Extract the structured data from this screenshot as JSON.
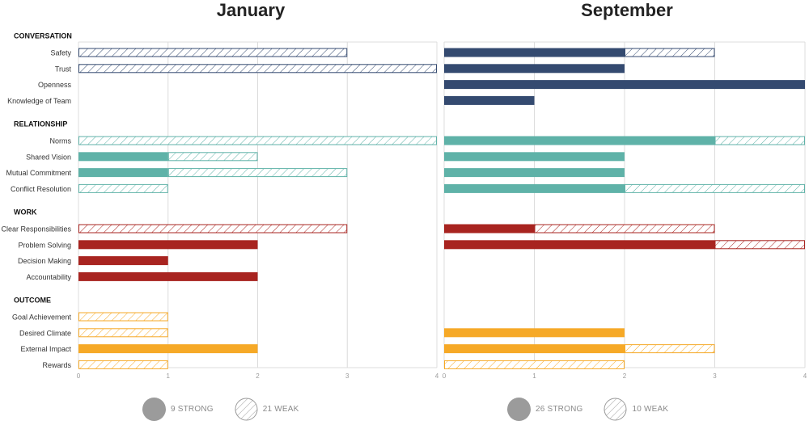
{
  "chart_data": {
    "type": "bar",
    "orientation": "horizontal",
    "xlim": [
      0,
      4
    ],
    "x_ticks": [
      "0",
      "1",
      "2",
      "3",
      "4"
    ],
    "groups": [
      {
        "label": "CONVERSATION",
        "items": [
          "Safety",
          "Trust",
          "Openness",
          "Knowledge of Team"
        ]
      },
      {
        "label": "RELATIONSHIP",
        "items": [
          "Norms",
          "Shared Vision",
          "Mutual Commitment",
          "Conflict Resolution"
        ]
      },
      {
        "label": "WORK",
        "items": [
          "Clear Responsibilities",
          "Problem Solving",
          "Decision Making",
          "Accountability"
        ]
      },
      {
        "label": "OUTCOME",
        "items": [
          "Goal Achievement",
          "Desired Climate",
          "External Impact",
          "Rewards"
        ]
      }
    ],
    "group_colors": [
      "#344a70",
      "#5fb2a8",
      "#a82420",
      "#f6a927"
    ],
    "series_types": [
      "strong",
      "weak"
    ],
    "panels": [
      {
        "title": "January",
        "strong": [
          [
            0,
            0,
            0,
            0
          ],
          [
            0,
            1,
            1,
            0
          ],
          [
            0,
            2,
            1,
            2
          ],
          [
            0,
            0,
            2,
            0
          ]
        ],
        "weak": [
          [
            3,
            4,
            0,
            0
          ],
          [
            4,
            1,
            2,
            1
          ],
          [
            3,
            0,
            0,
            0
          ],
          [
            1,
            1,
            0,
            1
          ]
        ],
        "legend": {
          "strong": "9 STRONG",
          "weak": "21 WEAK"
        }
      },
      {
        "title": "September",
        "strong": [
          [
            2,
            2,
            4,
            1
          ],
          [
            3,
            2,
            2,
            2
          ],
          [
            1,
            3,
            0,
            0
          ],
          [
            0,
            2,
            2,
            0
          ]
        ],
        "weak": [
          [
            1,
            0,
            0,
            0
          ],
          [
            1,
            0,
            0,
            2
          ],
          [
            2,
            1,
            0,
            0
          ],
          [
            0,
            0,
            1,
            2
          ]
        ],
        "legend": {
          "strong": "26 STRONG",
          "weak": "10 WEAK"
        }
      }
    ]
  }
}
